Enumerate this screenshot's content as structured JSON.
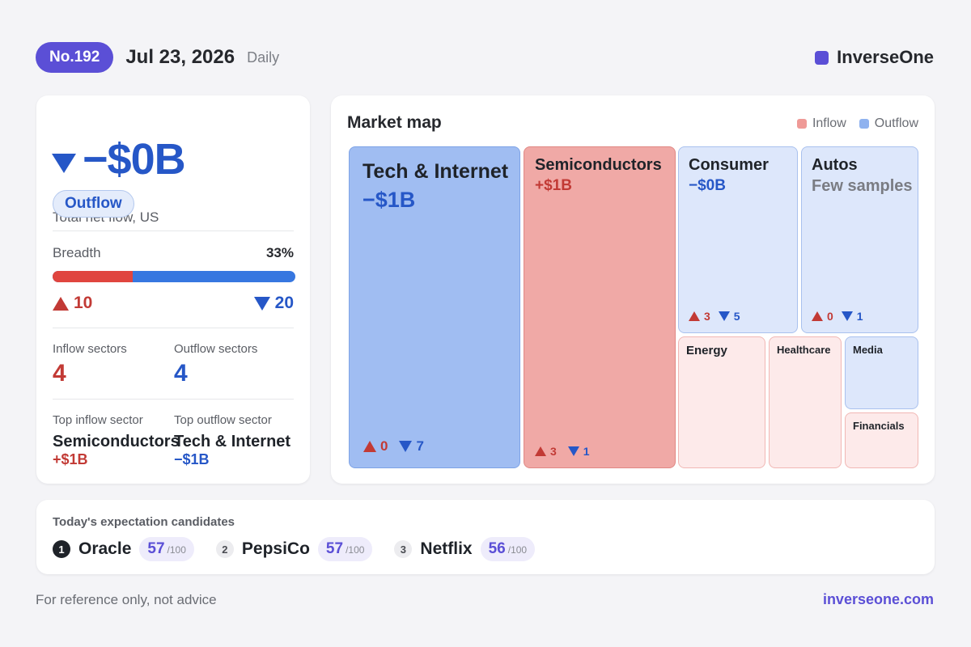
{
  "header": {
    "issue": "No.192",
    "date": "Jul 23, 2026",
    "period": "Daily",
    "brand": "InverseOne"
  },
  "summary": {
    "label": "Total net flow, US",
    "value": "−$0B",
    "direction": "Outflow",
    "breadth_label": "Breadth",
    "breadth_pct": "33%",
    "breadth_fraction": 0.33,
    "up_count": "10",
    "down_count": "20",
    "inflow_sectors_label": "Inflow sectors",
    "inflow_sectors": "4",
    "outflow_sectors_label": "Outflow sectors",
    "outflow_sectors": "4",
    "top_inflow_label": "Top inflow sector",
    "top_inflow_name": "Semiconductors",
    "top_inflow_value": "+$1B",
    "top_outflow_label": "Top outflow sector",
    "top_outflow_name": "Tech & Internet",
    "top_outflow_value": "−$1B"
  },
  "map": {
    "title": "Market map",
    "legend_inflow": "Inflow",
    "legend_outflow": "Outflow",
    "tiles": [
      {
        "name": "Tech & Internet",
        "value": "−$1B",
        "up": "0",
        "down": "7",
        "flow": "outflow"
      },
      {
        "name": "Semiconductors",
        "value": "+$1B",
        "up": "3",
        "down": "1",
        "flow": "inflow"
      },
      {
        "name": "Consumer",
        "value": "−$0B",
        "up": "3",
        "down": "5",
        "flow": "outflow"
      },
      {
        "name": "Autos",
        "value": "Few samples",
        "up": "0",
        "down": "1",
        "flow": "outflow"
      },
      {
        "name": "Energy",
        "flow": "inflow"
      },
      {
        "name": "Healthcare",
        "flow": "inflow"
      },
      {
        "name": "Media",
        "flow": "outflow"
      },
      {
        "name": "Financials",
        "flow": "inflow"
      }
    ]
  },
  "candidates": {
    "title": "Today's expectation candidates",
    "items": [
      {
        "rank": "1",
        "name": "Oracle",
        "score": "57",
        "max": "/100"
      },
      {
        "rank": "2",
        "name": "PepsiCo",
        "score": "57",
        "max": "/100"
      },
      {
        "rank": "3",
        "name": "Netflix",
        "score": "56",
        "max": "/100"
      }
    ]
  },
  "footer": {
    "note": "For reference only, not advice",
    "link": "inverseone.com"
  },
  "colors": {
    "brand": "#5b4fd6",
    "inflow": "#e0453f",
    "outflow": "#3777e0",
    "inflow_text": "#c23a35",
    "outflow_text": "#2657c7"
  }
}
